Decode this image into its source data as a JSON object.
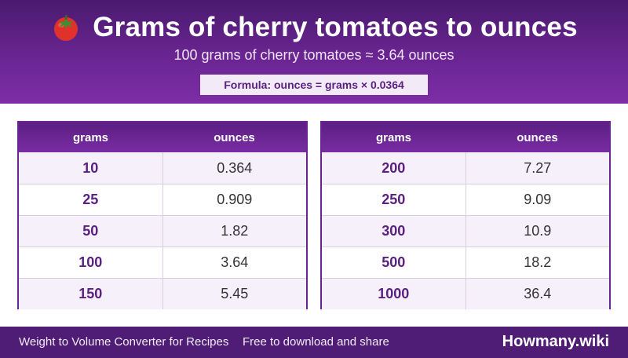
{
  "header": {
    "title": "Grams of cherry tomatoes to ounces",
    "subtitle": "100 grams of cherry tomatoes ≈ 3.64 ounces",
    "formula": "Formula: ounces = grams × 0.0364",
    "icon": "tomato-icon"
  },
  "tables": {
    "left": {
      "headers": [
        "grams",
        "ounces"
      ],
      "rows": [
        [
          "10",
          "0.364"
        ],
        [
          "25",
          "0.909"
        ],
        [
          "50",
          "1.82"
        ],
        [
          "100",
          "3.64"
        ],
        [
          "150",
          "5.45"
        ]
      ]
    },
    "right": {
      "headers": [
        "grams",
        "ounces"
      ],
      "rows": [
        [
          "200",
          "7.27"
        ],
        [
          "250",
          "9.09"
        ],
        [
          "300",
          "10.9"
        ],
        [
          "500",
          "18.2"
        ],
        [
          "1000",
          "36.4"
        ]
      ]
    }
  },
  "footer": {
    "app_name": "Weight to Volume Converter for Recipes",
    "note": "Free to download and share",
    "brand": "Howmany.wiki"
  },
  "colors": {
    "header_purple": "#6a2592",
    "footer_purple": "#4f1c76",
    "grams_text": "#5a2180"
  }
}
